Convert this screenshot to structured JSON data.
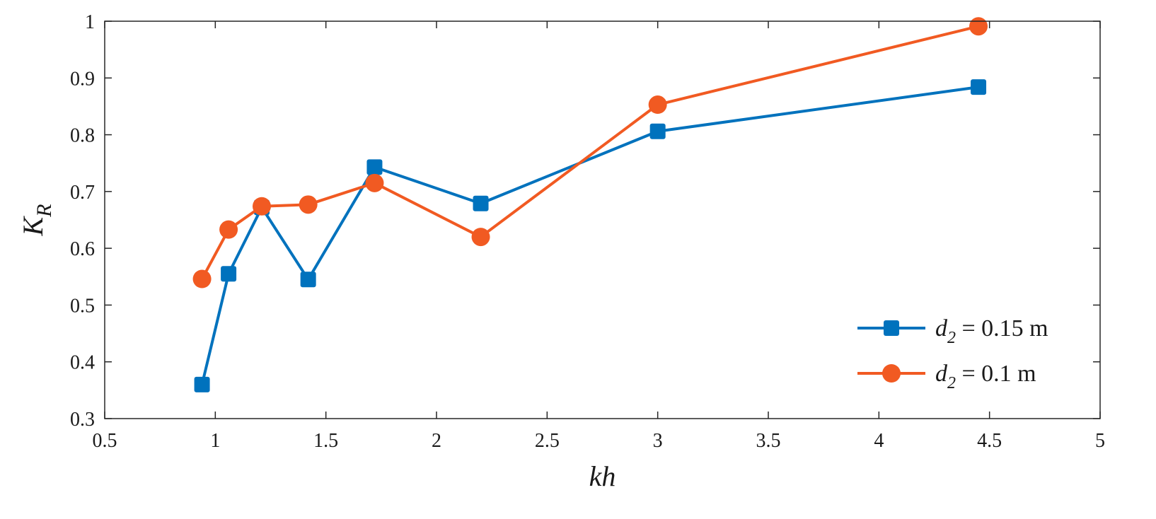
{
  "chart_data": {
    "type": "line",
    "xlabel": "kh",
    "ylabel": {
      "main": "K",
      "sub": "R"
    },
    "xlim": [
      0.5,
      5
    ],
    "ylim": [
      0.3,
      1
    ],
    "xticks": [
      0.5,
      1,
      1.5,
      2,
      2.5,
      3,
      3.5,
      4,
      4.5,
      5
    ],
    "yticks": [
      0.3,
      0.4,
      0.5,
      0.6,
      0.7,
      0.8,
      0.9,
      1
    ],
    "xtick_labels": [
      "0.5",
      "1",
      "1.5",
      "2",
      "2.5",
      "3",
      "3.5",
      "4",
      "4.5",
      "5"
    ],
    "ytick_labels": [
      "0.3",
      "0.4",
      "0.5",
      "0.6",
      "0.7",
      "0.8",
      "0.9",
      "1"
    ],
    "grid": false,
    "legend_position": "bottom-right",
    "series": [
      {
        "name": "d2 = 0.15 m",
        "legend": {
          "symbol": "d",
          "sub": "2",
          "rest": " = 0.15 m"
        },
        "color": "#0072BD",
        "marker": "square",
        "x": [
          0.94,
          1.06,
          1.21,
          1.42,
          1.72,
          2.2,
          3.0,
          4.45
        ],
        "y": [
          0.36,
          0.555,
          0.672,
          0.545,
          0.743,
          0.679,
          0.806,
          0.884
        ]
      },
      {
        "name": "d2 = 0.1 m",
        "legend": {
          "symbol": "d",
          "sub": "2",
          "rest": " = 0.1 m"
        },
        "color": "#F15A22",
        "marker": "circle",
        "x": [
          0.94,
          1.06,
          1.21,
          1.42,
          1.72,
          2.2,
          3.0,
          4.45
        ],
        "y": [
          0.546,
          0.633,
          0.674,
          0.677,
          0.715,
          0.62,
          0.853,
          0.991
        ]
      }
    ]
  }
}
